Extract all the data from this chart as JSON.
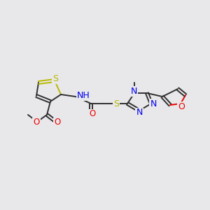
{
  "background_color": "#e8e8ea",
  "atom_colors": {
    "S": "#b8b800",
    "N": "#0000ee",
    "O": "#ee0000",
    "C": "#303030",
    "H": "#303030"
  },
  "bond_color": "#303030",
  "bond_lw": 1.4,
  "figsize": [
    3.0,
    3.0
  ],
  "dpi": 100
}
